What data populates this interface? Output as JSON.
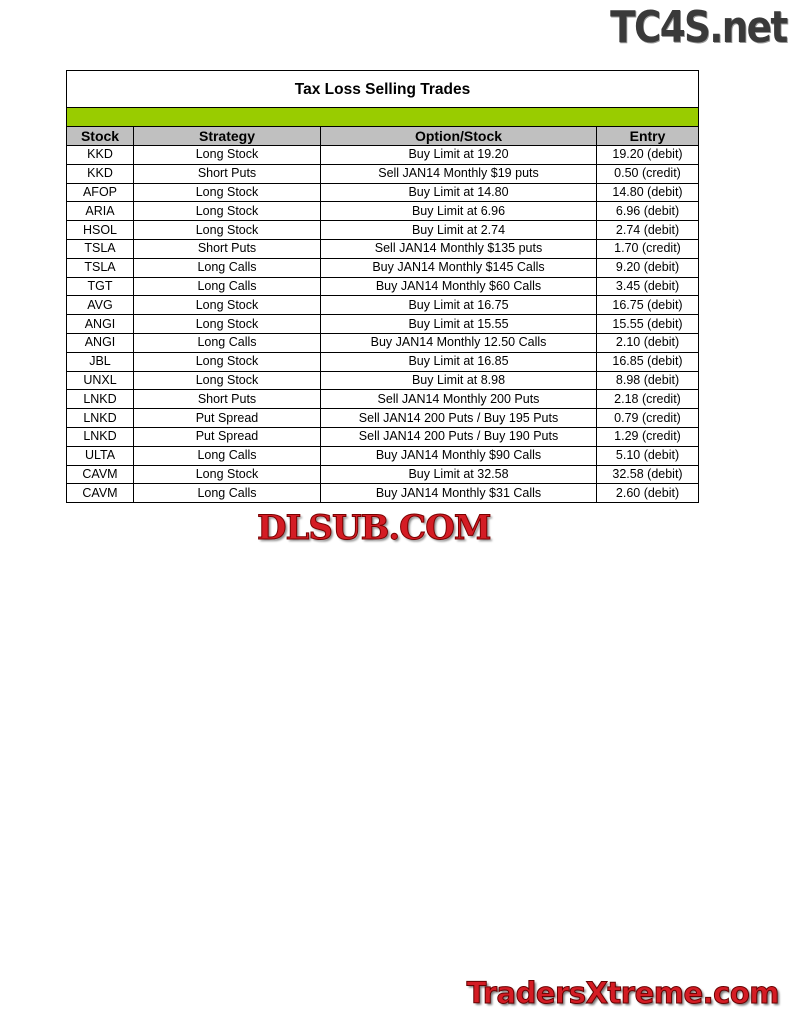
{
  "watermarks": {
    "top": "TC4S.net",
    "middle": "DLSUB.COM",
    "bottom": "TradersXtreme.com"
  },
  "table": {
    "title": "Tax Loss Selling Trades",
    "accent_color": "#99cc00",
    "headers": [
      "Stock",
      "Strategy",
      "Option/Stock",
      "Entry"
    ],
    "rows": [
      [
        "KKD",
        "Long Stock",
        "Buy Limit at 19.20",
        "19.20 (debit)"
      ],
      [
        "KKD",
        "Short Puts",
        "Sell JAN14 Monthly $19 puts",
        "0.50 (credit)"
      ],
      [
        "AFOP",
        "Long Stock",
        "Buy Limit at 14.80",
        "14.80 (debit)"
      ],
      [
        "ARIA",
        "Long Stock",
        "Buy Limit at 6.96",
        "6.96 (debit)"
      ],
      [
        "HSOL",
        "Long Stock",
        "Buy Limit at 2.74",
        "2.74 (debit)"
      ],
      [
        "TSLA",
        "Short Puts",
        "Sell JAN14 Monthly $135 puts",
        "1.70 (credit)"
      ],
      [
        "TSLA",
        "Long Calls",
        "Buy JAN14 Monthly $145 Calls",
        "9.20 (debit)"
      ],
      [
        "TGT",
        "Long Calls",
        "Buy JAN14 Monthly $60 Calls",
        "3.45 (debit)"
      ],
      [
        "AVG",
        "Long Stock",
        "Buy Limit at 16.75",
        "16.75 (debit)"
      ],
      [
        "ANGI",
        "Long Stock",
        "Buy Limit at 15.55",
        "15.55 (debit)"
      ],
      [
        "ANGI",
        "Long Calls",
        "Buy JAN14 Monthly 12.50 Calls",
        "2.10 (debit)"
      ],
      [
        "JBL",
        "Long Stock",
        "Buy Limit at 16.85",
        "16.85 (debit)"
      ],
      [
        "UNXL",
        "Long Stock",
        "Buy Limit at 8.98",
        "8.98 (debit)"
      ],
      [
        "LNKD",
        "Short Puts",
        "Sell JAN14 Monthly 200 Puts",
        "2.18 (credit)"
      ],
      [
        "LNKD",
        "Put Spread",
        "Sell JAN14 200 Puts / Buy 195 Puts",
        "0.79 (credit)"
      ],
      [
        "LNKD",
        "Put Spread",
        "Sell JAN14 200 Puts / Buy 190 Puts",
        "1.29 (credit)"
      ],
      [
        "ULTA",
        "Long Calls",
        "Buy JAN14 Monthly $90 Calls",
        "5.10 (debit)"
      ],
      [
        "CAVM",
        "Long Stock",
        "Buy Limit at 32.58",
        "32.58 (debit)"
      ],
      [
        "CAVM",
        "Long Calls",
        "Buy JAN14 Monthly $31 Calls",
        "2.60 (debit)"
      ]
    ]
  }
}
